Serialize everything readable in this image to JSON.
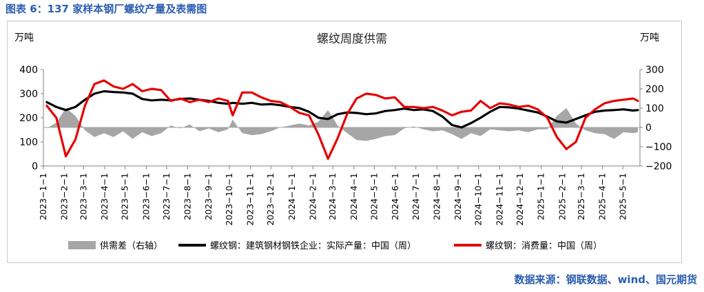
{
  "figure_title": "图表 6：137 家样本钢厂螺纹产量及表需图",
  "source": "数据来源：钢联数据、wind、国元期货",
  "colors": {
    "title_blue": "#2a5db0",
    "area_gray": "#a6a6a6",
    "production_black": "#000000",
    "consumption_red": "#e60000",
    "axis_gray": "#808080"
  },
  "chart_data": {
    "type": "line",
    "title": "螺纹周度供需",
    "ylabel_left": "万吨",
    "ylabel_right": "万吨",
    "ylim_left": [
      0,
      400
    ],
    "ylim_right": [
      -200,
      300
    ],
    "yticks_left": [
      "0",
      "100",
      "200",
      "300",
      "400"
    ],
    "yticks_right": [
      "−200",
      "−100",
      "0",
      "100",
      "200",
      "300"
    ],
    "x_tick_labels": [
      "2023−1−1",
      "2023−2−1",
      "2023−3−1",
      "2023−4−1",
      "2023−5−1",
      "2023−6−1",
      "2023−7−1",
      "2023−8−1",
      "2023−9−1",
      "2023−10−1",
      "2023−11−1",
      "2023−12−1",
      "2024−1−1",
      "2024−2−1",
      "2024−3−1",
      "2024−4−1",
      "2024−5−1",
      "2024−6−1",
      "2024−7−1",
      "2024−8−1",
      "2024−9−1",
      "2024−10−1",
      "2024−11−1",
      "2024−12−1",
      "2025−1−1",
      "2025−2−1",
      "2025−3−1",
      "2025−4−1",
      "2025−5−1"
    ],
    "x_start": "2023-01-01",
    "x_end": "2025-05-26",
    "grid": false,
    "legend_position": "bottom",
    "series": [
      {
        "name": "供需差（右轴）",
        "type": "area",
        "axis": "right",
        "points": [
          [
            "2023-01-06",
            -5
          ],
          [
            "2023-01-20",
            25
          ],
          [
            "2023-02-03",
            100
          ],
          [
            "2023-02-17",
            60
          ],
          [
            "2023-03-03",
            -15
          ],
          [
            "2023-03-17",
            -50
          ],
          [
            "2023-03-31",
            -30
          ],
          [
            "2023-04-14",
            -50
          ],
          [
            "2023-04-28",
            -20
          ],
          [
            "2023-05-12",
            -60
          ],
          [
            "2023-05-26",
            -25
          ],
          [
            "2023-06-09",
            -45
          ],
          [
            "2023-06-23",
            -30
          ],
          [
            "2023-07-07",
            10
          ],
          [
            "2023-07-21",
            -5
          ],
          [
            "2023-08-04",
            15
          ],
          [
            "2023-08-18",
            -20
          ],
          [
            "2023-09-01",
            -5
          ],
          [
            "2023-09-15",
            -25
          ],
          [
            "2023-09-29",
            -10
          ],
          [
            "2023-10-06",
            40
          ],
          [
            "2023-10-20",
            -30
          ],
          [
            "2023-11-03",
            -40
          ],
          [
            "2023-11-17",
            -35
          ],
          [
            "2023-12-01",
            -20
          ],
          [
            "2023-12-15",
            0
          ],
          [
            "2023-12-29",
            10
          ],
          [
            "2024-01-12",
            20
          ],
          [
            "2024-01-26",
            10
          ],
          [
            "2024-02-09",
            30
          ],
          [
            "2024-02-23",
            90
          ],
          [
            "2024-03-08",
            10
          ],
          [
            "2024-03-22",
            -30
          ],
          [
            "2024-04-05",
            -65
          ],
          [
            "2024-04-19",
            -70
          ],
          [
            "2024-05-03",
            -60
          ],
          [
            "2024-05-17",
            -45
          ],
          [
            "2024-05-31",
            -40
          ],
          [
            "2024-06-14",
            -5
          ],
          [
            "2024-06-28",
            5
          ],
          [
            "2024-07-12",
            -10
          ],
          [
            "2024-07-26",
            -20
          ],
          [
            "2024-08-09",
            -15
          ],
          [
            "2024-08-23",
            -35
          ],
          [
            "2024-09-06",
            -60
          ],
          [
            "2024-09-20",
            -30
          ],
          [
            "2024-10-04",
            -45
          ],
          [
            "2024-10-18",
            -10
          ],
          [
            "2024-11-01",
            -15
          ],
          [
            "2024-11-15",
            -20
          ],
          [
            "2024-11-29",
            -15
          ],
          [
            "2024-12-13",
            -25
          ],
          [
            "2024-12-27",
            -10
          ],
          [
            "2025-01-10",
            -10
          ],
          [
            "2025-01-24",
            60
          ],
          [
            "2025-02-07",
            100
          ],
          [
            "2025-02-21",
            20
          ],
          [
            "2025-03-07",
            -15
          ],
          [
            "2025-03-21",
            -30
          ],
          [
            "2025-04-04",
            -35
          ],
          [
            "2025-04-18",
            -60
          ],
          [
            "2025-05-02",
            -25
          ],
          [
            "2025-05-16",
            -30
          ],
          [
            "2025-05-23",
            -25
          ]
        ]
      },
      {
        "name": "螺纹钢：建筑钢材钢铁企业：实际产量：中国（周）",
        "type": "line",
        "axis": "left",
        "points": [
          [
            "2023-01-06",
            265
          ],
          [
            "2023-01-20",
            245
          ],
          [
            "2023-02-03",
            232
          ],
          [
            "2023-02-17",
            245
          ],
          [
            "2023-03-03",
            275
          ],
          [
            "2023-03-17",
            300
          ],
          [
            "2023-03-31",
            310
          ],
          [
            "2023-04-14",
            307
          ],
          [
            "2023-04-28",
            305
          ],
          [
            "2023-05-12",
            300
          ],
          [
            "2023-05-26",
            278
          ],
          [
            "2023-06-09",
            272
          ],
          [
            "2023-06-23",
            275
          ],
          [
            "2023-07-07",
            272
          ],
          [
            "2023-07-21",
            278
          ],
          [
            "2023-08-04",
            280
          ],
          [
            "2023-08-18",
            275
          ],
          [
            "2023-09-01",
            270
          ],
          [
            "2023-09-15",
            262
          ],
          [
            "2023-09-29",
            258
          ],
          [
            "2023-10-06",
            262
          ],
          [
            "2023-10-20",
            258
          ],
          [
            "2023-11-03",
            262
          ],
          [
            "2023-11-17",
            255
          ],
          [
            "2023-12-01",
            257
          ],
          [
            "2023-12-15",
            252
          ],
          [
            "2023-12-29",
            245
          ],
          [
            "2024-01-12",
            240
          ],
          [
            "2024-01-26",
            225
          ],
          [
            "2024-02-09",
            200
          ],
          [
            "2024-02-23",
            195
          ],
          [
            "2024-03-08",
            215
          ],
          [
            "2024-03-22",
            222
          ],
          [
            "2024-04-05",
            220
          ],
          [
            "2024-04-19",
            215
          ],
          [
            "2024-05-03",
            218
          ],
          [
            "2024-05-17",
            228
          ],
          [
            "2024-05-31",
            232
          ],
          [
            "2024-06-14",
            238
          ],
          [
            "2024-06-28",
            232
          ],
          [
            "2024-07-12",
            235
          ],
          [
            "2024-07-26",
            228
          ],
          [
            "2024-08-09",
            205
          ],
          [
            "2024-08-23",
            170
          ],
          [
            "2024-09-06",
            160
          ],
          [
            "2024-09-20",
            178
          ],
          [
            "2024-10-04",
            200
          ],
          [
            "2024-10-18",
            225
          ],
          [
            "2024-11-01",
            245
          ],
          [
            "2024-11-15",
            243
          ],
          [
            "2024-11-29",
            238
          ],
          [
            "2024-12-13",
            230
          ],
          [
            "2024-12-27",
            222
          ],
          [
            "2025-01-10",
            205
          ],
          [
            "2025-01-24",
            185
          ],
          [
            "2025-02-07",
            180
          ],
          [
            "2025-02-21",
            195
          ],
          [
            "2025-03-07",
            210
          ],
          [
            "2025-03-21",
            225
          ],
          [
            "2025-04-04",
            230
          ],
          [
            "2025-04-18",
            232
          ],
          [
            "2025-05-02",
            235
          ],
          [
            "2025-05-16",
            230
          ],
          [
            "2025-05-23",
            232
          ]
        ]
      },
      {
        "name": "螺纹钢：消费量：中国（周）",
        "type": "line",
        "axis": "left",
        "points": [
          [
            "2023-01-06",
            250
          ],
          [
            "2023-01-20",
            200
          ],
          [
            "2023-02-03",
            40
          ],
          [
            "2023-02-17",
            110
          ],
          [
            "2023-03-03",
            250
          ],
          [
            "2023-03-17",
            340
          ],
          [
            "2023-03-31",
            355
          ],
          [
            "2023-04-14",
            330
          ],
          [
            "2023-04-28",
            320
          ],
          [
            "2023-05-12",
            340
          ],
          [
            "2023-05-26",
            310
          ],
          [
            "2023-06-09",
            320
          ],
          [
            "2023-06-23",
            315
          ],
          [
            "2023-07-07",
            270
          ],
          [
            "2023-07-21",
            280
          ],
          [
            "2023-08-04",
            265
          ],
          [
            "2023-08-18",
            275
          ],
          [
            "2023-09-01",
            265
          ],
          [
            "2023-09-15",
            280
          ],
          [
            "2023-09-29",
            270
          ],
          [
            "2023-10-06",
            210
          ],
          [
            "2023-10-20",
            305
          ],
          [
            "2023-11-03",
            305
          ],
          [
            "2023-11-17",
            285
          ],
          [
            "2023-12-01",
            270
          ],
          [
            "2023-12-15",
            265
          ],
          [
            "2023-12-29",
            245
          ],
          [
            "2024-01-12",
            220
          ],
          [
            "2024-01-26",
            210
          ],
          [
            "2024-02-09",
            130
          ],
          [
            "2024-02-23",
            30
          ],
          [
            "2024-03-08",
            115
          ],
          [
            "2024-03-22",
            215
          ],
          [
            "2024-04-05",
            280
          ],
          [
            "2024-04-19",
            300
          ],
          [
            "2024-05-03",
            295
          ],
          [
            "2024-05-17",
            280
          ],
          [
            "2024-05-31",
            285
          ],
          [
            "2024-06-14",
            245
          ],
          [
            "2024-06-28",
            245
          ],
          [
            "2024-07-12",
            240
          ],
          [
            "2024-07-26",
            245
          ],
          [
            "2024-08-09",
            230
          ],
          [
            "2024-08-23",
            210
          ],
          [
            "2024-09-06",
            225
          ],
          [
            "2024-09-20",
            230
          ],
          [
            "2024-10-04",
            270
          ],
          [
            "2024-10-18",
            240
          ],
          [
            "2024-11-01",
            260
          ],
          [
            "2024-11-15",
            255
          ],
          [
            "2024-11-29",
            245
          ],
          [
            "2024-12-13",
            250
          ],
          [
            "2024-12-27",
            235
          ],
          [
            "2025-01-10",
            200
          ],
          [
            "2025-01-24",
            120
          ],
          [
            "2025-02-07",
            70
          ],
          [
            "2025-02-21",
            100
          ],
          [
            "2025-03-07",
            200
          ],
          [
            "2025-03-21",
            235
          ],
          [
            "2025-04-04",
            260
          ],
          [
            "2025-04-18",
            270
          ],
          [
            "2025-05-02",
            275
          ],
          [
            "2025-05-16",
            280
          ],
          [
            "2025-05-23",
            270
          ]
        ]
      }
    ]
  }
}
